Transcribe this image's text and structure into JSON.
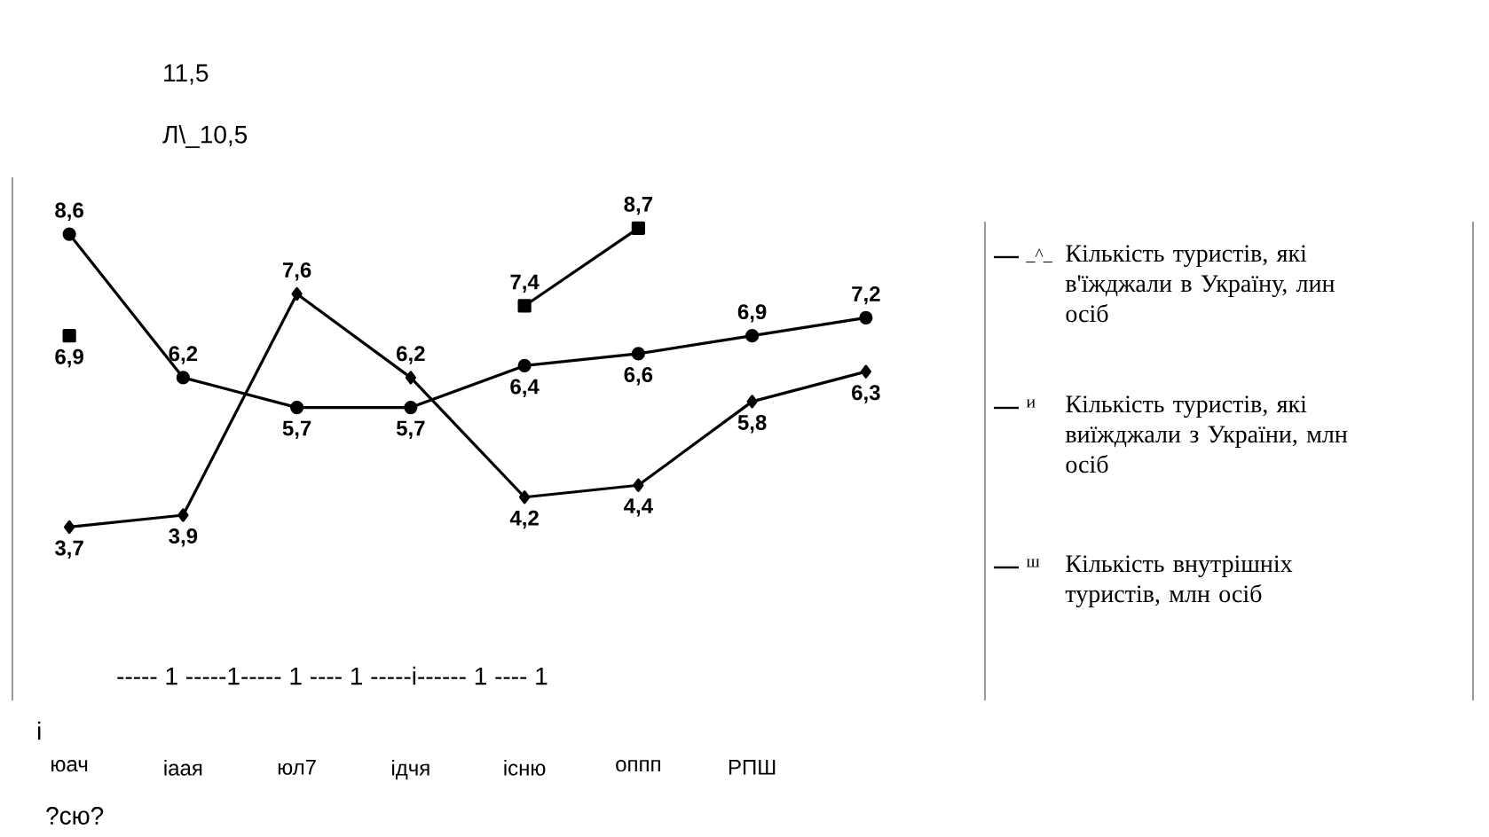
{
  "chart_data": {
    "type": "line",
    "categories": [
      "юач",
      "іаая",
      "юл7",
      "ідчя",
      "існю",
      "оппп",
      "РПШ",
      null
    ],
    "series": [
      {
        "name": "Кількість туристів, які в'їжджали в Україну, лин осіб",
        "color": "#000000",
        "marker": "square",
        "values": [
          6.9,
          null,
          null,
          null,
          7.4,
          8.7,
          null,
          null
        ],
        "value_labels": [
          "6,9",
          null,
          null,
          null,
          "7,4",
          "8,7",
          null,
          null
        ]
      },
      {
        "name": "Кількість туристів, які виїжджали з України, млн осіб",
        "color": "#000000",
        "marker": "circle",
        "values": [
          8.6,
          6.2,
          5.7,
          5.7,
          6.4,
          6.6,
          6.9,
          7.2
        ],
        "value_labels": [
          "8,6",
          "6,2",
          "5,7",
          "5,7",
          "6,4",
          "6,6",
          "6,9",
          "7,2"
        ]
      },
      {
        "name": "Кількість внутрішніх туристів, млн осіб",
        "color": "#000000",
        "marker": "diamond",
        "values": [
          3.7,
          3.9,
          7.6,
          6.2,
          4.2,
          4.4,
          5.8,
          6.3
        ],
        "value_labels": [
          "3,7",
          "3,9",
          "7,6",
          "6,2",
          "4,2",
          "4,4",
          "5,8",
          "6,3"
        ]
      }
    ],
    "legend": "right",
    "annotations": [
      "11,5",
      "Л\\_10,5",
      "----- 1 -----1----- 1 ---- 1 -----і------ 1 ---- 1",
      "і",
      "?сю?",
      "_^_",
      "и",
      "ш"
    ]
  }
}
